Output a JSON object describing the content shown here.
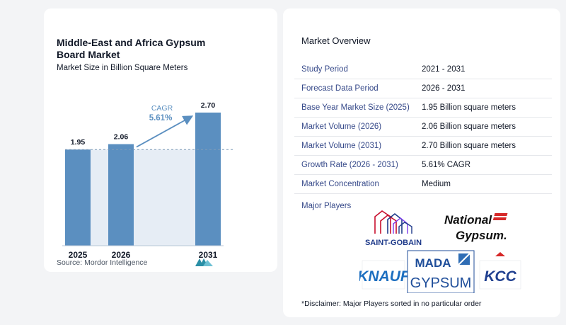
{
  "chart_data": {
    "type": "bar",
    "title": "Middle-East and Africa Gypsum Board Market",
    "subtitle": "Market Size in Billion Square Meters",
    "categories": [
      "2025",
      "2026",
      "2031"
    ],
    "values": [
      1.95,
      2.06,
      2.7
    ],
    "value_labels": [
      "1.95",
      "2.06",
      "2.70"
    ],
    "cagr_label": "CAGR",
    "cagr_value": "5.61%",
    "reference_line": 1.95,
    "ylim": [
      0,
      2.7
    ],
    "grid": false,
    "colors": {
      "bar": "#5b8fc0",
      "cagr_text": "#5b8fc0",
      "baseline": "#b7c6d6",
      "band": "#e6edf5"
    }
  },
  "source": "Source:  Mordor Intelligence",
  "overview": {
    "title": "Market Overview",
    "rows": [
      {
        "label": "Study Period",
        "value": "2021 - 2031"
      },
      {
        "label": "Forecast Data Period",
        "value": "2026 - 2031"
      },
      {
        "label": "Base Year Market Size (2025)",
        "value": "1.95 Billion square meters"
      },
      {
        "label": "Market Volume (2026)",
        "value": "2.06 Billion square meters"
      },
      {
        "label": "Market Volume (2031)",
        "value": "2.70 Billion square meters"
      },
      {
        "label": "Growth Rate (2026 - 2031)",
        "value": "5.61% CAGR"
      },
      {
        "label": "Market Concentration",
        "value": "Medium"
      }
    ],
    "major_players_label": "Major Players",
    "players": {
      "saint_gobain": "SAINT-GOBAIN",
      "national_gypsum_1": "National",
      "national_gypsum_2": "Gypsum.",
      "knauf": "KNAUF",
      "mada_1": "MADA",
      "mada_2": "GYPSUM",
      "kcc": "KCC"
    },
    "disclaimer": "*Disclaimer: Major Players sorted in no particular order"
  }
}
